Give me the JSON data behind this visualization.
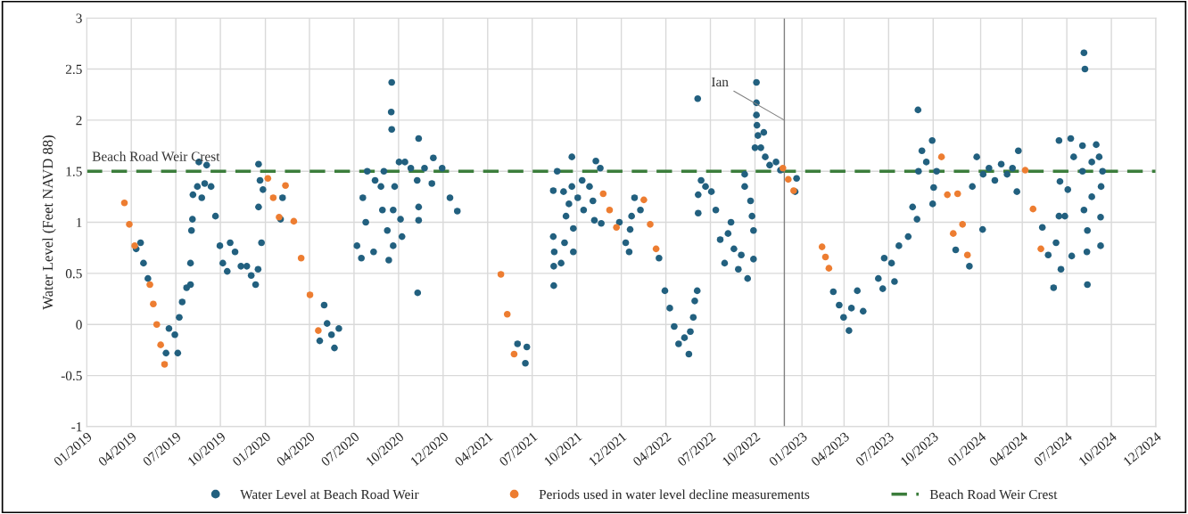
{
  "chart_data": {
    "type": "scatter",
    "ylabel": "Water Level (Feet NAVD 88)",
    "xlim": [
      "2019-01-01",
      "2024-12-24"
    ],
    "ylim": [
      -1,
      3
    ],
    "xticks": [
      {
        "value": "2019-01-01",
        "label": "01/2019"
      },
      {
        "value": "2019-04-02",
        "label": "04/2019"
      },
      {
        "value": "2019-07-02",
        "label": "07/2019"
      },
      {
        "value": "2019-10-01",
        "label": "10/2019"
      },
      {
        "value": "2020-01-01",
        "label": "01/2020"
      },
      {
        "value": "2020-03-31",
        "label": "04/2020"
      },
      {
        "value": "2020-06-30",
        "label": "07/2020"
      },
      {
        "value": "2020-09-29",
        "label": "10/2020"
      },
      {
        "value": "2020-12-29",
        "label": "12/2020"
      },
      {
        "value": "2021-03-30",
        "label": "04/2021"
      },
      {
        "value": "2021-06-29",
        "label": "07/2021"
      },
      {
        "value": "2021-09-28",
        "label": "10/2021"
      },
      {
        "value": "2021-12-28",
        "label": "12/2021"
      },
      {
        "value": "2022-03-29",
        "label": "04/2022"
      },
      {
        "value": "2022-06-28",
        "label": "07/2022"
      },
      {
        "value": "2022-09-27",
        "label": "10/2022"
      },
      {
        "value": "2023-01-01",
        "label": "01/2023"
      },
      {
        "value": "2023-03-28",
        "label": "04/2023"
      },
      {
        "value": "2023-06-27",
        "label": "07/2023"
      },
      {
        "value": "2023-09-26",
        "label": "10/2023"
      },
      {
        "value": "2024-01-01",
        "label": "01/2024"
      },
      {
        "value": "2024-03-26",
        "label": "04/2024"
      },
      {
        "value": "2024-06-25",
        "label": "07/2024"
      },
      {
        "value": "2024-09-24",
        "label": "10/2024"
      },
      {
        "value": "2024-12-24",
        "label": "12/2024"
      }
    ],
    "yticks": [
      -1,
      -0.5,
      0,
      0.5,
      1,
      1.5,
      2,
      2.5,
      3
    ],
    "grid": true,
    "legend": "bottom",
    "marker": "circle",
    "series": [
      {
        "name": "Water Level at Beach Road Weir",
        "color": "#22607f",
        "x": [
          "2019-04-12",
          "2019-04-21",
          "2019-04-27",
          "2019-05-06",
          "2019-06-12",
          "2019-06-18",
          "2019-06-30",
          "2019-07-06",
          "2019-07-09",
          "2019-07-15",
          "2019-07-24",
          "2019-08-01",
          "2019-08-01",
          "2019-08-03",
          "2019-08-05",
          "2019-08-06",
          "2019-08-15",
          "2019-08-18",
          "2019-08-24",
          "2019-08-30",
          "2019-09-03",
          "2019-09-12",
          "2019-09-21",
          "2019-09-30",
          "2019-10-06",
          "2019-10-15",
          "2019-10-21",
          "2019-10-31",
          "2019-11-12",
          "2019-11-24",
          "2019-12-03",
          "2019-12-12",
          "2019-12-17",
          "2019-12-18",
          "2019-12-18",
          "2019-12-21",
          "2019-12-24",
          "2019-12-27",
          "2020-02-01",
          "2020-02-05",
          "2020-04-21",
          "2020-04-30",
          "2020-05-06",
          "2020-05-15",
          "2020-05-21",
          "2020-05-30",
          "2020-07-06",
          "2020-07-15",
          "2020-07-18",
          "2020-07-24",
          "2020-07-27",
          "2020-08-09",
          "2020-08-12",
          "2020-08-24",
          "2020-08-27",
          "2020-08-30",
          "2020-09-06",
          "2020-09-09",
          "2020-09-14",
          "2020-09-15",
          "2020-09-15",
          "2020-09-18",
          "2020-09-18",
          "2020-09-21",
          "2020-09-30",
          "2020-10-03",
          "2020-10-06",
          "2020-10-12",
          "2020-10-24",
          "2020-11-06",
          "2020-11-07",
          "2020-11-09",
          "2020-11-09",
          "2020-11-09",
          "2020-11-21",
          "2020-12-06",
          "2020-12-09",
          "2020-12-27",
          "2021-01-12",
          "2021-01-27",
          "2021-05-30",
          "2021-06-15",
          "2021-06-18",
          "2021-08-11",
          "2021-08-11",
          "2021-08-12",
          "2021-08-12",
          "2021-08-13",
          "2021-08-19",
          "2021-08-27",
          "2021-09-01",
          "2021-09-03",
          "2021-09-06",
          "2021-09-12",
          "2021-09-18",
          "2021-09-18",
          "2021-09-21",
          "2021-09-21",
          "2021-09-30",
          "2021-10-09",
          "2021-10-12",
          "2021-10-24",
          "2021-10-31",
          "2021-11-03",
          "2021-11-06",
          "2021-11-15",
          "2021-11-17",
          "2021-12-24",
          "2022-01-06",
          "2022-01-13",
          "2022-01-15",
          "2022-01-18",
          "2022-01-24",
          "2022-02-05",
          "2022-03-15",
          "2022-03-27",
          "2022-04-06",
          "2022-04-15",
          "2022-04-24",
          "2022-05-06",
          "2022-05-15",
          "2022-05-18",
          "2022-05-24",
          "2022-05-27",
          "2022-06-01",
          "2022-06-02",
          "2022-06-03",
          "2022-06-03",
          "2022-06-09",
          "2022-06-18",
          "2022-06-30",
          "2022-07-09",
          "2022-07-18",
          "2022-07-27",
          "2022-08-03",
          "2022-08-09",
          "2022-08-15",
          "2022-08-24",
          "2022-08-30",
          "2022-09-06",
          "2022-09-06",
          "2022-09-12",
          "2022-09-18",
          "2022-09-21",
          "2022-09-24",
          "2022-09-24",
          "2022-09-27",
          "2022-09-30",
          "2022-09-30",
          "2022-09-30",
          "2022-10-01",
          "2022-10-03",
          "2022-10-09",
          "2022-10-15",
          "2022-10-18",
          "2022-10-27",
          "2022-11-09",
          "2022-11-18",
          "2022-12-18",
          "2022-12-21",
          "2023-03-06",
          "2023-03-18",
          "2023-03-27",
          "2023-04-07",
          "2023-04-12",
          "2023-04-24",
          "2023-05-06",
          "2023-06-06",
          "2023-06-15",
          "2023-06-18",
          "2023-07-03",
          "2023-07-09",
          "2023-07-18",
          "2023-08-06",
          "2023-08-15",
          "2023-08-24",
          "2023-08-26",
          "2023-08-27",
          "2023-09-03",
          "2023-09-12",
          "2023-09-24",
          "2023-09-25",
          "2023-09-27",
          "2023-10-03",
          "2023-11-11",
          "2023-12-09",
          "2023-12-15",
          "2023-12-24",
          "2024-01-05",
          "2024-01-06",
          "2024-01-18",
          "2024-01-30",
          "2024-02-12",
          "2024-02-24",
          "2024-03-06",
          "2024-03-15",
          "2024-03-18",
          "2024-05-06",
          "2024-05-18",
          "2024-05-29",
          "2024-06-03",
          "2024-06-09",
          "2024-06-09",
          "2024-06-11",
          "2024-06-13",
          "2024-06-21",
          "2024-06-27",
          "2024-07-03",
          "2024-07-05",
          "2024-07-09",
          "2024-07-27",
          "2024-07-27",
          "2024-07-30",
          "2024-07-30",
          "2024-08-01",
          "2024-08-05",
          "2024-08-06",
          "2024-08-06",
          "2024-08-15",
          "2024-08-15",
          "2024-08-24",
          "2024-08-30",
          "2024-09-02",
          "2024-09-02",
          "2024-09-03",
          "2024-09-06"
        ],
        "values": [
          0.74,
          0.8,
          0.6,
          0.45,
          -0.28,
          -0.04,
          -0.1,
          -0.28,
          0.07,
          0.22,
          0.36,
          0.39,
          0.6,
          0.92,
          1.03,
          1.27,
          1.35,
          1.59,
          1.24,
          1.38,
          1.56,
          1.35,
          1.06,
          0.77,
          0.6,
          0.52,
          0.8,
          0.71,
          0.57,
          0.57,
          0.48,
          0.39,
          0.54,
          1.57,
          1.15,
          1.41,
          0.8,
          1.32,
          1.03,
          1.24,
          -0.16,
          0.19,
          0.01,
          -0.1,
          -0.23,
          -0.04,
          0.77,
          0.65,
          1.24,
          1.0,
          1.5,
          0.71,
          1.41,
          1.35,
          1.12,
          1.5,
          0.92,
          0.63,
          2.08,
          2.37,
          1.91,
          0.77,
          1.12,
          1.35,
          1.59,
          1.03,
          0.86,
          1.59,
          1.53,
          1.41,
          0.31,
          1.82,
          1.15,
          1.02,
          1.53,
          1.38,
          1.63,
          1.53,
          1.24,
          1.11,
          -0.19,
          -0.38,
          -0.22,
          0.86,
          1.31,
          0.38,
          0.57,
          0.71,
          1.5,
          0.6,
          1.3,
          0.8,
          1.06,
          1.18,
          1.64,
          1.35,
          0.71,
          0.94,
          1.24,
          1.41,
          1.12,
          1.35,
          1.21,
          1.02,
          1.6,
          1.53,
          0.99,
          1.0,
          0.8,
          0.71,
          0.93,
          1.06,
          1.24,
          1.12,
          0.65,
          0.33,
          0.16,
          -0.02,
          -0.19,
          -0.13,
          -0.29,
          -0.07,
          0.07,
          0.23,
          0.33,
          2.21,
          1.09,
          1.27,
          1.41,
          1.35,
          1.3,
          1.12,
          0.83,
          0.6,
          0.89,
          1.0,
          0.74,
          0.54,
          0.68,
          1.47,
          1.35,
          0.45,
          1.21,
          1.06,
          0.92,
          0.64,
          1.73,
          2.37,
          2.17,
          2.05,
          1.95,
          1.85,
          1.73,
          1.88,
          1.64,
          1.56,
          1.59,
          1.51,
          1.3,
          1.43,
          0.32,
          0.19,
          0.07,
          -0.06,
          0.16,
          0.33,
          0.13,
          0.45,
          0.35,
          0.65,
          0.6,
          0.42,
          0.77,
          0.86,
          1.15,
          1.03,
          2.1,
          1.5,
          1.7,
          1.59,
          1.8,
          1.18,
          1.34,
          1.5,
          0.73,
          0.57,
          1.35,
          1.64,
          0.93,
          1.47,
          1.53,
          1.41,
          1.57,
          1.47,
          1.53,
          1.3,
          1.7,
          0.95,
          0.68,
          0.36,
          0.8,
          1.06,
          1.8,
          1.4,
          0.54,
          1.06,
          1.32,
          1.82,
          0.67,
          1.64,
          1.75,
          1.5,
          2.66,
          1.12,
          2.5,
          0.71,
          0.39,
          0.92,
          1.25,
          1.59,
          1.76,
          1.64,
          1.05,
          0.77,
          1.35,
          1.5
        ]
      },
      {
        "name": "Periods used in water level decline measurements",
        "color": "#ed7d31",
        "x": [
          "2019-03-19",
          "2019-03-29",
          "2019-04-09",
          "2019-05-10",
          "2019-05-17",
          "2019-05-24",
          "2019-06-01",
          "2019-06-09",
          "2020-01-06",
          "2020-01-17",
          "2020-01-29",
          "2020-02-11",
          "2020-02-28",
          "2020-03-14",
          "2020-04-01",
          "2020-04-18",
          "2021-04-26",
          "2021-05-09",
          "2021-05-23",
          "2021-11-21",
          "2021-12-04",
          "2021-12-18",
          "2022-02-12",
          "2022-02-25",
          "2022-03-09",
          "2022-11-23",
          "2022-12-04",
          "2022-12-15",
          "2023-02-11",
          "2023-02-18",
          "2023-02-25",
          "2023-10-13",
          "2023-10-25",
          "2023-11-06",
          "2023-11-15",
          "2023-11-25",
          "2023-12-05",
          "2024-04-01",
          "2024-04-17",
          "2024-05-03"
        ],
        "values": [
          1.19,
          0.98,
          0.77,
          0.39,
          0.2,
          0.0,
          -0.2,
          -0.39,
          1.43,
          1.24,
          1.05,
          1.36,
          1.01,
          0.65,
          0.29,
          -0.06,
          0.49,
          0.1,
          -0.29,
          1.28,
          1.12,
          0.95,
          1.22,
          0.98,
          0.74,
          1.53,
          1.42,
          1.31,
          0.76,
          0.66,
          0.55,
          1.64,
          1.27,
          0.89,
          1.28,
          0.98,
          0.68,
          1.51,
          1.13,
          0.74
        ]
      }
    ],
    "ref_lines": [
      {
        "axis": "y",
        "value": 1.5,
        "label": "Beach Road Weir Crest",
        "color": "#3b7d3b",
        "line_style": "dashed"
      },
      {
        "axis": "x",
        "value": "2022-11-26",
        "color": "#808080",
        "line_style": "solid"
      }
    ],
    "annotations": [
      {
        "text": "Ian",
        "x": "2022-11-26",
        "y": 2.0
      }
    ]
  }
}
